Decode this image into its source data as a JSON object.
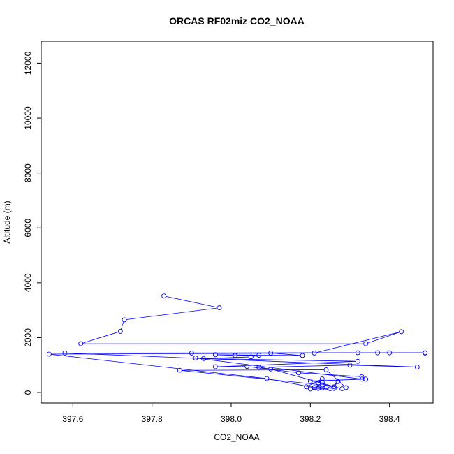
{
  "chart_data": {
    "type": "line",
    "title": "ORCAS RF02miz CO2_NOAA",
    "xlabel": "CO2_NOAA",
    "ylabel": "Altitude (m)",
    "xlim": [
      397.52,
      398.51
    ],
    "ylim": [
      -380,
      12800
    ],
    "x_ticks": [
      397.6,
      397.8,
      398.0,
      398.2,
      398.4
    ],
    "x_tick_labels": [
      "397.6",
      "397.8",
      "398.0",
      "398.2",
      "398.4"
    ],
    "y_ticks": [
      0,
      2000,
      4000,
      6000,
      8000,
      10000,
      12000
    ],
    "y_tick_labels": [
      "0",
      "2000",
      "4000",
      "6000",
      "8000",
      "10000",
      "12000"
    ],
    "series": [
      {
        "color": "#0000ff",
        "marker": "circle-open",
        "points": [
          [
            397.83,
            3520
          ],
          [
            397.97,
            3090
          ],
          [
            397.73,
            2650
          ],
          [
            397.72,
            2230
          ],
          [
            397.62,
            1780
          ],
          [
            398.34,
            1780
          ],
          [
            398.43,
            2220
          ],
          [
            398.21,
            1440
          ],
          [
            398.49,
            1440
          ],
          [
            398.32,
            1450
          ],
          [
            397.58,
            1440
          ],
          [
            398.47,
            930
          ],
          [
            398.3,
            1000
          ],
          [
            398.07,
            920
          ],
          [
            398.1,
            860
          ],
          [
            398.28,
            140
          ],
          [
            398.29,
            180
          ],
          [
            398.24,
            830
          ],
          [
            397.87,
            810
          ],
          [
            398.23,
            280
          ],
          [
            398.21,
            180
          ],
          [
            398.09,
            510
          ],
          [
            397.54,
            1400
          ],
          [
            398.49,
            1450
          ],
          [
            398.4,
            1450
          ],
          [
            398.37,
            1450
          ],
          [
            397.9,
            1440
          ],
          [
            398.1,
            1440
          ],
          [
            398.18,
            1350
          ],
          [
            397.96,
            1380
          ],
          [
            398.01,
            1350
          ],
          [
            398.07,
            1360
          ],
          [
            398.05,
            1300
          ],
          [
            397.93,
            1240
          ],
          [
            398.32,
            1140
          ],
          [
            397.96,
            940
          ],
          [
            398.04,
            950
          ],
          [
            398.17,
            720
          ],
          [
            398.33,
            580
          ],
          [
            398.34,
            490
          ],
          [
            398.2,
            420
          ],
          [
            398.23,
            380
          ],
          [
            398.22,
            340
          ],
          [
            398.26,
            210
          ],
          [
            398.27,
            400
          ],
          [
            398.25,
            140
          ],
          [
            398.2,
            130
          ],
          [
            398.21,
            180
          ],
          [
            398.22,
            150
          ],
          [
            398.23,
            170
          ],
          [
            398.24,
            180
          ],
          [
            398.26,
            150
          ],
          [
            398.19,
            210
          ],
          [
            398.23,
            500
          ],
          [
            398.33,
            490
          ],
          [
            397.91,
            1260
          ]
        ]
      }
    ]
  }
}
